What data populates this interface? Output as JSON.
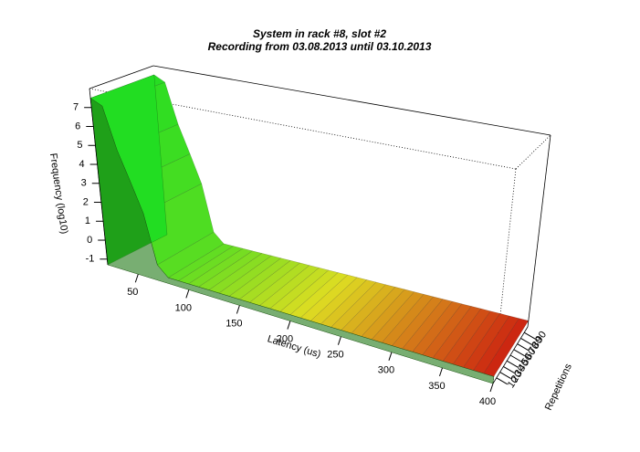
{
  "chart_data": {
    "type": "surface3d",
    "title": "System in rack #8, slot #2",
    "subtitle": "Recording from 03.08.2013 until 03.10.2013",
    "xlabel": "Latency (us)",
    "ylabel": "Repetitions",
    "zlabel": "Frequency (log10)",
    "x": [
      20,
      30,
      40,
      50,
      60,
      70,
      80,
      90,
      100,
      110,
      120,
      130,
      140,
      150,
      160,
      170,
      180,
      190,
      200,
      210,
      220,
      230,
      240,
      250,
      260,
      270,
      280,
      290,
      300,
      310,
      320,
      330,
      340,
      350,
      360,
      370,
      380,
      390,
      400
    ],
    "values": [
      7.5,
      7.2,
      5.0,
      3.5,
      2.0,
      -0.5,
      -1,
      -1,
      -1,
      -1,
      -1,
      -1,
      -1,
      -1,
      -1,
      -1,
      -1,
      -1,
      -1,
      -1,
      -1,
      -1,
      -1,
      -1,
      -1,
      -1,
      -1,
      -1,
      -1,
      -1,
      -1,
      -1,
      -1,
      -1,
      -1,
      -1,
      -1,
      -1,
      -1
    ],
    "xlim": [
      20,
      400
    ],
    "ylim": [
      0,
      100
    ],
    "zlim": [
      -1.3,
      8
    ],
    "xticks": [
      50,
      100,
      150,
      200,
      250,
      300,
      350,
      400
    ],
    "yticks": [
      10,
      20,
      30,
      40,
      50,
      60,
      70,
      80,
      90
    ],
    "zticks": [
      -1,
      0,
      1,
      2,
      3,
      4,
      5,
      6,
      7
    ],
    "colors": [
      "#22dd22",
      "#dddd22",
      "#cc2211"
    ]
  }
}
